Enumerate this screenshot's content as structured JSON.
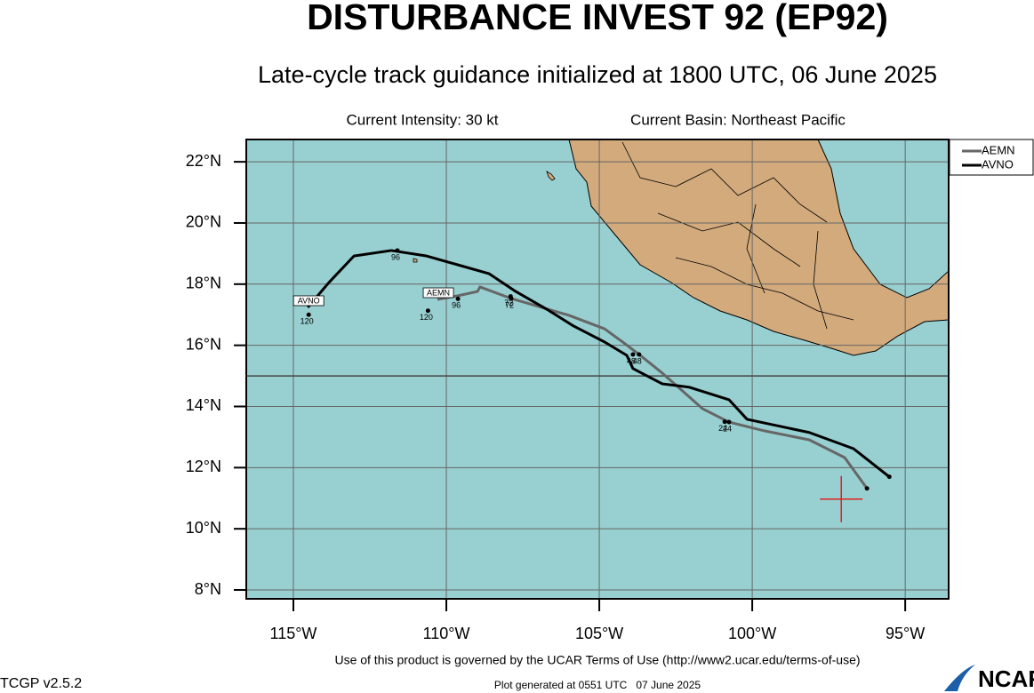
{
  "map": {
    "title": "DISTURBANCE INVEST 92 (EP92)",
    "subtitle": "Late-cycle track guidance initialized at 1800 UTC, 06 June 2025",
    "intensity": "Current Intensity: 30 kt",
    "basin": "Current Basin: Northeast Pacific",
    "xlim": [
      -116.54,
      -93.58
    ],
    "ylim": [
      7.71,
      22.73
    ],
    "xticks": [
      {
        "value": -115,
        "label": "115°W"
      },
      {
        "value": -110,
        "label": "110°W"
      },
      {
        "value": -105,
        "label": "105°W"
      },
      {
        "value": -100,
        "label": "100°W"
      },
      {
        "value": -95,
        "label": "95°W"
      }
    ],
    "yticks": [
      {
        "value": 8,
        "label": "8°N"
      },
      {
        "value": 10,
        "label": "10°N"
      },
      {
        "value": 12,
        "label": "12°N"
      },
      {
        "value": 14,
        "label": "14°N"
      },
      {
        "value": 16,
        "label": "16°N"
      },
      {
        "value": 18,
        "label": "18°N"
      },
      {
        "value": 20,
        "label": "20°N"
      },
      {
        "value": 22,
        "label": "22°N"
      }
    ],
    "divider_lat": 15,
    "current_position": {
      "lon": -97.09,
      "lat": 10.97
    },
    "tracks": [
      {
        "name": "AEMN",
        "color": "#666666",
        "lon": [
          -96.25,
          -96.98,
          -98.14,
          -99.59,
          -100.76,
          -101.63,
          -102.35,
          -102.94,
          -103.66,
          -104.24,
          -104.83,
          -105.99,
          -107.88,
          -108.9,
          -108.98,
          -109.62,
          -110.29
        ],
        "lat": [
          11.32,
          12.33,
          12.91,
          13.2,
          13.49,
          13.93,
          14.57,
          15.09,
          15.67,
          16.11,
          16.54,
          16.98,
          17.53,
          17.91,
          17.76,
          17.62,
          17.5
        ],
        "forecast_points": [
          {
            "hour": "24",
            "lon": -100.76,
            "lat": 13.49
          },
          {
            "hour": "48",
            "lon": -103.9,
            "lat": 15.7
          },
          {
            "hour": "72",
            "lon": -107.88,
            "lat": 17.53
          },
          {
            "hour": "96",
            "lon": -109.62,
            "lat": 17.52
          },
          {
            "hour": "120",
            "lon": -110.6,
            "lat": 17.13
          }
        ]
      },
      {
        "name": "AVNO",
        "color": "#000000",
        "lon": [
          -95.52,
          -96.69,
          -98.14,
          -100.17,
          -100.76,
          -102.06,
          -102.94,
          -103.9,
          -104.1,
          -104.83,
          -105.84,
          -106.72,
          -107.73,
          -108.6,
          -109.62,
          -110.64,
          -111.8,
          -113.02,
          -113.84,
          -114.53
        ],
        "lat": [
          11.7,
          12.62,
          13.15,
          13.58,
          14.22,
          14.63,
          14.74,
          15.24,
          15.67,
          16.11,
          16.63,
          17.18,
          17.76,
          18.34,
          18.63,
          18.92,
          19.1,
          18.92,
          18.05,
          17.24
        ],
        "forecast_points": [
          {
            "hour": "24",
            "lon": -100.9,
            "lat": 13.5
          },
          {
            "hour": "48",
            "lon": -103.7,
            "lat": 15.7
          },
          {
            "hour": "72",
            "lon": -107.9,
            "lat": 17.6
          },
          {
            "hour": "96",
            "lon": -111.6,
            "lat": 19.1
          },
          {
            "hour": "120",
            "lon": -114.5,
            "lat": 17.0
          }
        ]
      }
    ],
    "footer": "Use of this product is governed by the UCAR Terms of Use (http://www2.ucar.edu/terms-of-use)",
    "version": "TCGP v2.5.2",
    "generated": "Plot generated at 0551 UTC   07 June 2025",
    "logo": "NCAR"
  }
}
